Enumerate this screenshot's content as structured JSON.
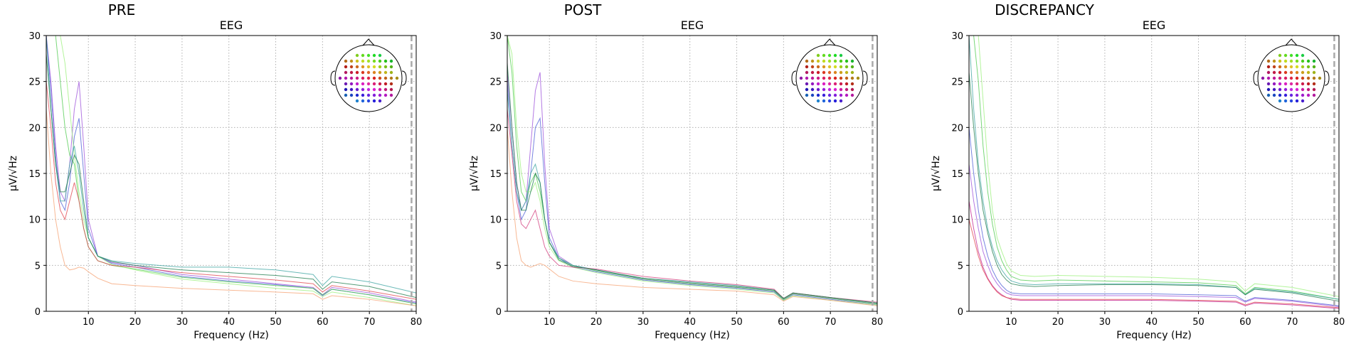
{
  "chart_data": [
    {
      "type": "line",
      "title": "PRE",
      "subtitle": "EEG",
      "x_label": "Frequency (Hz)",
      "y_label": "μV/√Hz",
      "x": [
        1,
        2,
        3,
        4,
        5,
        6,
        7,
        8,
        9,
        10,
        12,
        15,
        20,
        30,
        40,
        50,
        58,
        60,
        62,
        70,
        80
      ],
      "xlim": [
        1,
        80
      ],
      "xticks": [
        10,
        20,
        30,
        40,
        50,
        60,
        70,
        80
      ],
      "ylim": [
        0,
        30
      ],
      "yticks": [
        0,
        5,
        10,
        15,
        20,
        25,
        30
      ],
      "grid": true,
      "vlines": [
        79
      ],
      "series": [
        {
          "color": "#9b4dd9",
          "values": [
            30,
            25,
            18,
            13,
            12,
            16,
            22,
            25,
            18,
            10,
            6,
            5.3,
            5,
            4,
            3.5,
            3,
            2.6,
            1.8,
            2.6,
            2,
            1
          ]
        },
        {
          "color": "#4a5bd6",
          "values": [
            30,
            24,
            17,
            12,
            11,
            14,
            19,
            21,
            15,
            9,
            6,
            5.2,
            4.8,
            3.8,
            3.3,
            2.9,
            2.5,
            1.7,
            2.4,
            1.8,
            0.9
          ]
        },
        {
          "color": "#4cc94c",
          "values": [
            30,
            30,
            30,
            25,
            20,
            17,
            16,
            12,
            9,
            7,
            5.5,
            5,
            4.6,
            3.7,
            3.2,
            2.8,
            2.5,
            1.8,
            2.4,
            1.8,
            0.8
          ]
        },
        {
          "color": "#99f07a",
          "values": [
            30,
            30,
            30,
            30,
            27,
            22,
            17,
            13,
            10,
            8,
            6,
            5.1,
            4.5,
            3.5,
            3,
            2.5,
            2.2,
            1.6,
            2.1,
            1.5,
            0.6
          ]
        },
        {
          "color": "#3aa3a0",
          "values": [
            30,
            22,
            16,
            12,
            12,
            16,
            18,
            15,
            11,
            8,
            6,
            5.5,
            5.2,
            4.8,
            4.8,
            4.5,
            4,
            2.8,
            3.8,
            3.2,
            2
          ]
        },
        {
          "color": "#e0404a",
          "values": [
            25,
            20,
            14,
            11,
            10,
            12,
            14,
            12,
            9,
            7,
            5.5,
            5,
            4.8,
            4.2,
            3.8,
            3.4,
            3,
            2.1,
            2.8,
            2.2,
            1.3
          ]
        },
        {
          "color": "#f5a070",
          "values": [
            22,
            15,
            10,
            7,
            5,
            4.5,
            4.6,
            4.8,
            4.7,
            4.3,
            3.6,
            3,
            2.8,
            2.5,
            2.3,
            2.1,
            1.9,
            1.3,
            1.7,
            1.3,
            0.6
          ]
        },
        {
          "color": "#1a7a4a",
          "values": [
            28,
            22,
            16,
            13,
            13,
            15,
            17,
            16,
            12,
            8,
            6,
            5.4,
            5,
            4.5,
            4.2,
            3.9,
            3.5,
            2.4,
            3.2,
            2.7,
            1.5
          ]
        }
      ]
    },
    {
      "type": "line",
      "title": "POST",
      "subtitle": "EEG",
      "x_label": "Frequency (Hz)",
      "y_label": "μV/√Hz",
      "x": [
        1,
        2,
        3,
        4,
        5,
        6,
        7,
        8,
        9,
        10,
        12,
        15,
        20,
        30,
        40,
        50,
        58,
        60,
        62,
        70,
        80
      ],
      "xlim": [
        1,
        80
      ],
      "xticks": [
        10,
        20,
        30,
        40,
        50,
        60,
        70,
        80
      ],
      "ylim": [
        0,
        30
      ],
      "yticks": [
        0,
        5,
        10,
        15,
        20,
        25,
        30
      ],
      "grid": true,
      "vlines": [
        79
      ],
      "series": [
        {
          "color": "#9b4dd9",
          "values": [
            26,
            20,
            14,
            11,
            12,
            18,
            24,
            26,
            16,
            9,
            6,
            5,
            4.5,
            3.5,
            3,
            2.6,
            2.2,
            1.3,
            1.9,
            1.4,
            0.8
          ]
        },
        {
          "color": "#4a5bd6",
          "values": [
            25,
            18,
            13,
            10,
            11,
            15,
            20,
            21,
            14,
            8,
            5.8,
            4.8,
            4.3,
            3.4,
            2.9,
            2.5,
            2.1,
            1.2,
            1.8,
            1.3,
            0.7
          ]
        },
        {
          "color": "#4cc94c",
          "values": [
            30,
            26,
            18,
            13,
            12,
            14,
            15,
            13,
            10,
            7.5,
            5.8,
            5,
            4.4,
            3.5,
            3,
            2.6,
            2.2,
            1.3,
            1.9,
            1.4,
            0.8
          ]
        },
        {
          "color": "#99f07a",
          "values": [
            30,
            28,
            20,
            15,
            13,
            13,
            14,
            12,
            9,
            7,
            5.5,
            4.8,
            4.2,
            3.3,
            2.8,
            2.4,
            2,
            1.2,
            1.7,
            1.2,
            0.7
          ]
        },
        {
          "color": "#3aa3a0",
          "values": [
            24,
            18,
            13,
            11,
            12,
            15,
            16,
            14,
            10,
            7.5,
            5.8,
            5,
            4.5,
            3.6,
            3.2,
            2.8,
            2.3,
            1.4,
            2,
            1.5,
            0.9
          ]
        },
        {
          "color": "#d23a7a",
          "values": [
            22,
            17,
            12,
            9.5,
            9,
            10,
            11,
            9,
            7,
            6,
            5,
            4.8,
            4.6,
            3.8,
            3.3,
            2.9,
            2.4,
            1.4,
            2,
            1.5,
            1
          ]
        },
        {
          "color": "#f5a070",
          "values": [
            20,
            13,
            8,
            5.5,
            5,
            4.8,
            5,
            5.2,
            5,
            4.6,
            3.8,
            3.3,
            3,
            2.6,
            2.4,
            2.2,
            1.8,
            1.1,
            1.6,
            1.2,
            0.6
          ]
        },
        {
          "color": "#1a7a4a",
          "values": [
            27,
            20,
            14,
            11,
            11,
            13,
            15,
            14,
            10,
            7.5,
            5.6,
            4.9,
            4.5,
            3.6,
            3.1,
            2.7,
            2.3,
            1.4,
            2,
            1.5,
            0.9
          ]
        }
      ]
    },
    {
      "type": "line",
      "title": "DISCREPANCY",
      "subtitle": "EEG",
      "x_label": "Frequency (Hz)",
      "y_label": "μV/√Hz",
      "x": [
        1,
        2,
        3,
        4,
        5,
        6,
        7,
        8,
        9,
        10,
        12,
        15,
        20,
        30,
        40,
        50,
        58,
        60,
        62,
        70,
        80
      ],
      "xlim": [
        1,
        80
      ],
      "xticks": [
        10,
        20,
        30,
        40,
        50,
        60,
        70,
        80
      ],
      "ylim": [
        0,
        30
      ],
      "yticks": [
        0,
        5,
        10,
        15,
        20,
        25,
        30
      ],
      "grid": true,
      "vlines": [
        79
      ],
      "series": [
        {
          "color": "#99f07a",
          "values": [
            30,
            30,
            30,
            23,
            16,
            11,
            8,
            6.5,
            5.2,
            4.4,
            3.9,
            3.8,
            3.9,
            3.8,
            3.7,
            3.5,
            3.2,
            2.2,
            3,
            2.6,
            1.6
          ]
        },
        {
          "color": "#4cc94c",
          "values": [
            30,
            30,
            25,
            18,
            13,
            9.5,
            7,
            5.5,
            4.5,
            3.8,
            3.4,
            3.3,
            3.4,
            3.3,
            3.2,
            3.1,
            2.8,
            1.9,
            2.6,
            2.2,
            1.3
          ]
        },
        {
          "color": "#3aa3a0",
          "values": [
            30,
            22,
            16,
            12,
            9,
            7,
            5.5,
            4.5,
            3.8,
            3.3,
            3,
            2.9,
            3,
            3,
            3,
            2.9,
            2.6,
            1.8,
            2.5,
            2.1,
            1.3
          ]
        },
        {
          "color": "#1a7a4a",
          "values": [
            26,
            20,
            15,
            11,
            8.5,
            6.5,
            5,
            4,
            3.4,
            3,
            2.8,
            2.7,
            2.8,
            2.9,
            2.9,
            2.8,
            2.6,
            1.8,
            2.4,
            2,
            1.1
          ]
        },
        {
          "color": "#4a5bd6",
          "values": [
            20,
            15,
            11,
            8,
            6,
            4.5,
            3.5,
            2.8,
            2.3,
            2,
            1.9,
            1.9,
            1.9,
            1.9,
            1.9,
            1.8,
            1.7,
            1.1,
            1.5,
            1.2,
            0.6
          ]
        },
        {
          "color": "#9b4dd9",
          "values": [
            16,
            12,
            9,
            6.5,
            5,
            3.8,
            3,
            2.4,
            2,
            1.8,
            1.7,
            1.7,
            1.7,
            1.7,
            1.7,
            1.6,
            1.5,
            1,
            1.4,
            1.1,
            0.5
          ]
        },
        {
          "color": "#c21f8f",
          "values": [
            12,
            9,
            6.5,
            4.8,
            3.6,
            2.8,
            2.2,
            1.8,
            1.5,
            1.3,
            1.2,
            1.2,
            1.2,
            1.2,
            1.2,
            1.1,
            1,
            0.6,
            0.9,
            0.7,
            0.3
          ]
        },
        {
          "color": "#e0404a",
          "values": [
            10,
            8,
            6,
            4.5,
            3.5,
            2.7,
            2.1,
            1.7,
            1.5,
            1.4,
            1.3,
            1.3,
            1.3,
            1.3,
            1.3,
            1.2,
            1.1,
            0.7,
            1,
            0.8,
            0.4
          ]
        }
      ]
    }
  ]
}
